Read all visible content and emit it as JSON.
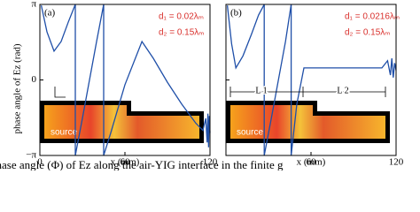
{
  "chart_data": [
    {
      "type": "line",
      "panel_label": "(a)",
      "ylabel": "phase angle of Ez (rad)",
      "xlabel": "x (mm)",
      "annotations": [
        "d₁ = 0.02λₘ",
        "d₂ = 0.15λₘ",
        "source"
      ],
      "xlim": [
        0,
        120
      ],
      "xticks": [
        0,
        60,
        120
      ],
      "ylim": [
        -3.1416,
        3.1416
      ],
      "yticks": [
        {
          "value": 3.1416,
          "label": "π"
        },
        0,
        {
          "value": -3.1416,
          "label": "−π"
        }
      ],
      "series": [
        {
          "color": "#1f4fa8",
          "x": [
            1,
            5,
            10,
            15,
            20,
            25,
            25,
            30,
            35,
            40,
            45,
            45,
            50,
            60,
            72,
            80,
            90,
            100,
            110,
            115,
            117,
            118,
            118.5,
            119,
            119.5,
            120
          ],
          "values": [
            3.1,
            2.0,
            1.2,
            1.6,
            2.4,
            3.14,
            -3.14,
            -1.6,
            0,
            1.6,
            3.14,
            -3.14,
            -2.2,
            -0.2,
            1.6,
            0.9,
            -0.1,
            -1.0,
            -1.8,
            -2.1,
            -1.6,
            -2.6,
            -1.4,
            -2.8,
            -1.5,
            -2.2
          ]
        }
      ]
    },
    {
      "type": "line",
      "panel_label": "(b)",
      "xlabel": "x (mm)",
      "annotations": [
        "d₁ = 0.0216λₘ",
        "d₂ = 0.15λₘ",
        "source",
        "L 1",
        "L 2"
      ],
      "xlim": [
        0,
        120
      ],
      "xticks": [
        60,
        120
      ],
      "ylim": [
        -3.1416,
        3.1416
      ],
      "yticks": [
        3.1416,
        0,
        -3.1416
      ],
      "series": [
        {
          "color": "#1f4fa8",
          "x": [
            1,
            4,
            7,
            12,
            18,
            23,
            27,
            27,
            32,
            37,
            42,
            46,
            46,
            50,
            55,
            70,
            90,
            110,
            114,
            116,
            117,
            118,
            119,
            120
          ],
          "values": [
            3.1,
            1.5,
            0.5,
            1.0,
            1.9,
            2.7,
            3.14,
            -3.14,
            -1.6,
            0,
            1.6,
            3.14,
            -3.14,
            -1.0,
            0.5,
            0.5,
            0.5,
            0.5,
            0.8,
            0.2,
            0.9,
            0.1,
            0.7,
            0.4
          ]
        }
      ]
    }
  ],
  "caption": "e phase angle (Φ) of Ez along the air-YIG interface in the finite g"
}
